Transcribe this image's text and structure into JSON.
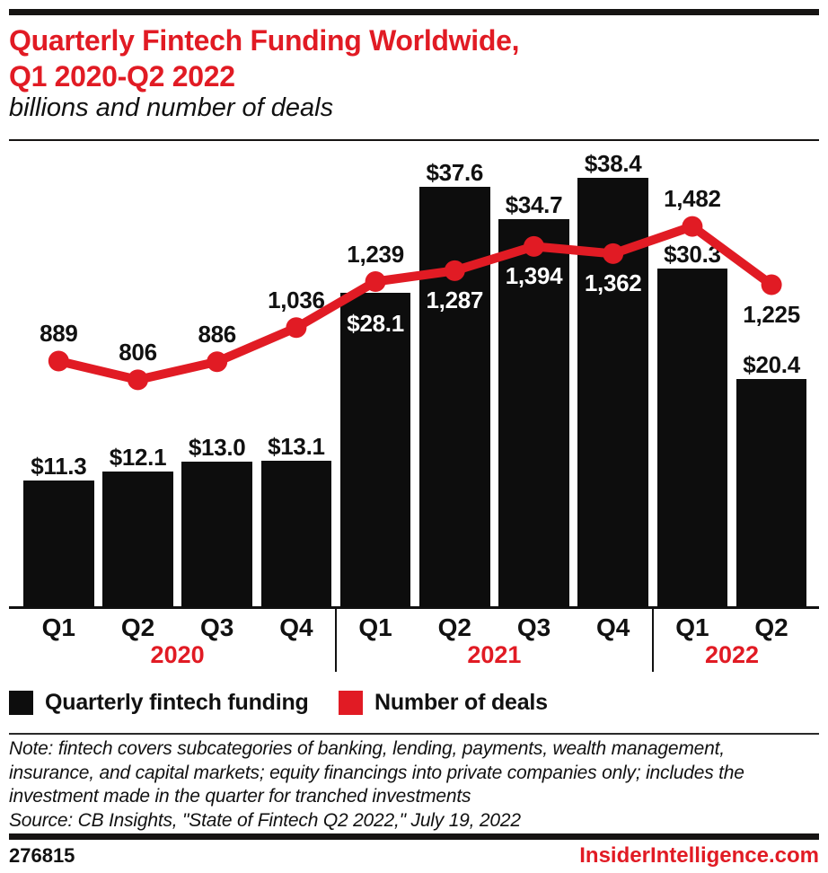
{
  "header": {
    "title_line1": "Quarterly Fintech Funding Worldwide,",
    "title_line2": "Q1 2020-Q2 2022",
    "subtitle": "billions and number of deals"
  },
  "chart_data": {
    "type": "bar+line",
    "categories": [
      "Q1",
      "Q2",
      "Q3",
      "Q4",
      "Q1",
      "Q2",
      "Q3",
      "Q4",
      "Q1",
      "Q2"
    ],
    "year_groups": [
      {
        "label": "2020",
        "quarters": 4
      },
      {
        "label": "2021",
        "quarters": 4
      },
      {
        "label": "2022",
        "quarters": 2
      }
    ],
    "series": [
      {
        "name": "Quarterly fintech funding",
        "type": "bar",
        "unit": "USD billions",
        "color": "#0d0d0d",
        "values": [
          11.3,
          12.1,
          13.0,
          13.1,
          28.1,
          37.6,
          34.7,
          38.4,
          30.3,
          20.4
        ],
        "labels": [
          "$11.3",
          "$12.1",
          "$13.0",
          "$13.1",
          "$28.1",
          "$37.6",
          "$34.7",
          "$38.4",
          "$30.3",
          "$20.4"
        ],
        "label_placement": [
          "above",
          "above",
          "above",
          "above",
          "inside",
          "above",
          "above",
          "above",
          "above",
          "above"
        ]
      },
      {
        "name": "Number of deals",
        "type": "line",
        "unit": "deals",
        "color": "#e11b24",
        "values": [
          889,
          806,
          886,
          1036,
          1239,
          1287,
          1394,
          1362,
          1482,
          1225
        ],
        "labels": [
          "889",
          "806",
          "886",
          "1,036",
          "1,239",
          "1,287",
          "1,394",
          "1,362",
          "1,482",
          "1,225"
        ],
        "label_placement": [
          "above",
          "above",
          "above",
          "above",
          "above",
          "below",
          "below",
          "below",
          "above",
          "below"
        ],
        "label_color": [
          "black",
          "black",
          "black",
          "black",
          "black",
          "white",
          "white",
          "white",
          "black",
          "black"
        ]
      }
    ],
    "grid": false,
    "value_axis_shown": false,
    "legend_position": "bottom"
  },
  "legend": {
    "items": [
      {
        "label": "Quarterly fintech funding",
        "color": "#0d0d0d"
      },
      {
        "label": "Number of deals",
        "color": "#e11b24"
      }
    ]
  },
  "notes": {
    "lines": [
      "Note: fintech covers subcategories of banking, lending, payments, wealth management,",
      "insurance, and capital markets; equity financings into private companies only; includes the",
      "investment made in the quarter for tranched investments",
      "Source: CB Insights, \"State of Fintech Q2 2022,\" July 19, 2022"
    ]
  },
  "footer": {
    "chart_id": "276815",
    "site": "InsiderIntelligence.com"
  },
  "colors": {
    "accent_red": "#e11b24",
    "bar_black": "#0d0d0d"
  }
}
